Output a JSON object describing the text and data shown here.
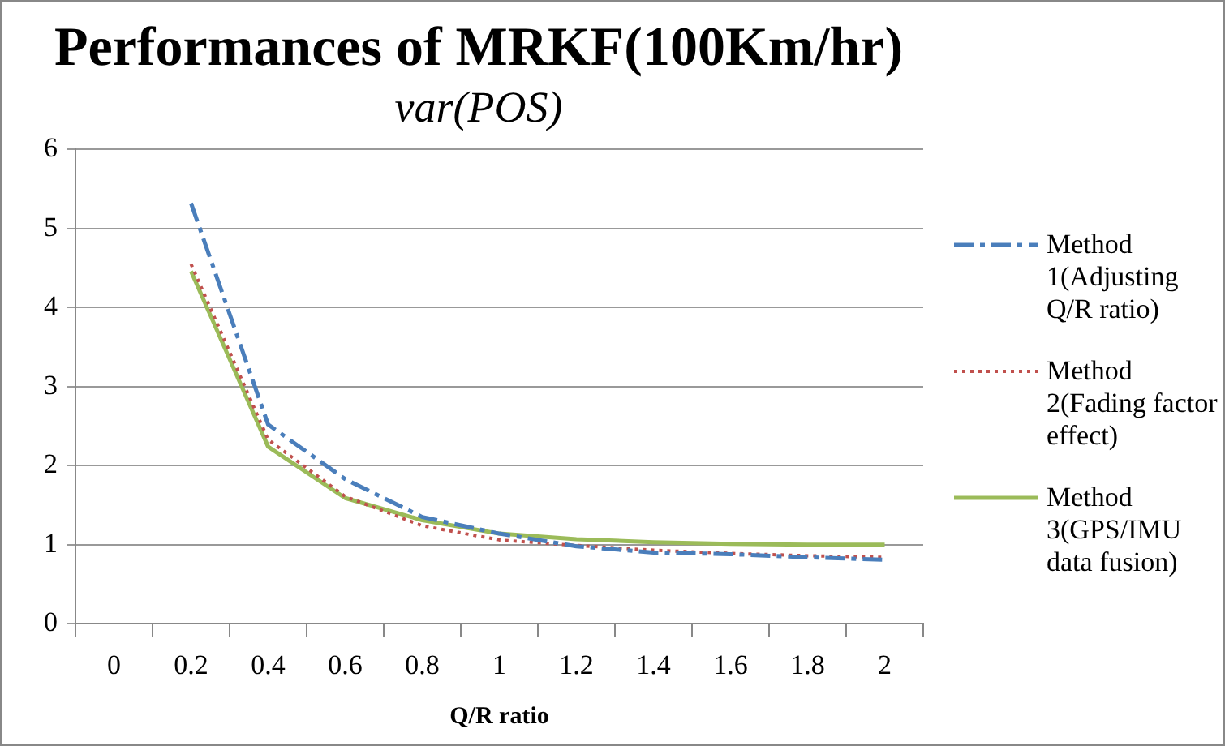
{
  "chart_data": {
    "type": "line",
    "title": "Performances of MRKF(100Km/hr)",
    "subtitle": "var(POS)",
    "xlabel": "Q/R ratio",
    "categories": [
      "0",
      "0.2",
      "0.4",
      "0.6",
      "0.8",
      "1",
      "1.2",
      "1.4",
      "1.6",
      "1.8",
      "2"
    ],
    "series": [
      {
        "name": "Method 1(Adjusting Q/R ratio)",
        "color": "#4a7ebb",
        "line_style": "dashed",
        "values": [
          null,
          5.32,
          2.52,
          1.83,
          1.35,
          1.14,
          0.98,
          0.9,
          0.88,
          0.84,
          0.81
        ]
      },
      {
        "name": "Method 2(Fading factor effect)",
        "color": "#c0504d",
        "line_style": "dotted",
        "values": [
          null,
          4.55,
          2.33,
          1.61,
          1.24,
          1.06,
          0.99,
          0.93,
          0.89,
          0.86,
          0.84
        ]
      },
      {
        "name": "Method 3(GPS/IMU data fusion)",
        "color": "#9bbb59",
        "line_style": "solid",
        "values": [
          null,
          4.46,
          2.24,
          1.59,
          1.31,
          1.14,
          1.07,
          1.03,
          1.01,
          1.0,
          1.0
        ]
      }
    ],
    "ylim": [
      0,
      6
    ],
    "yticks": [
      0,
      1,
      2,
      3,
      4,
      5,
      6
    ],
    "grid": "y",
    "legend": "right",
    "marker": "none"
  }
}
